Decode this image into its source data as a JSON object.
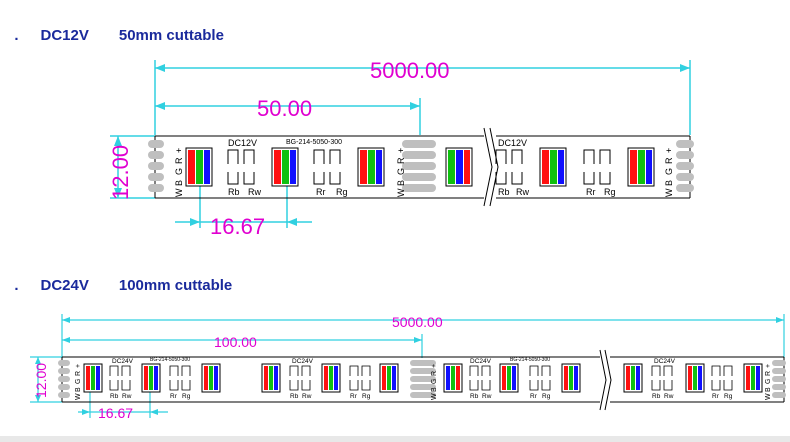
{
  "sections": [
    {
      "bullet": ".",
      "voltage": "DC12V",
      "cut_text": "50mm cuttable",
      "total_length": "5000.00",
      "cut_length": "50.00",
      "width": "12.00",
      "pitch": "16.67",
      "strip_voltage": "DC12V",
      "model": "BG-214-5050-300",
      "pad_labels": [
        "W",
        "B",
        "G",
        "R",
        "+"
      ],
      "resistor_labels": [
        "Rb",
        "Rw",
        "Rr",
        "Rg"
      ]
    },
    {
      "bullet": ".",
      "voltage": "DC24V",
      "cut_text": "100mm cuttable",
      "total_length": "5000.00",
      "cut_length": "100.00",
      "width": "12.00",
      "pitch": "16.67",
      "strip_voltage": "DC24V",
      "model": "BG-214-5050-300",
      "pad_labels": [
        "W",
        "B",
        "G",
        "R",
        "+"
      ],
      "resistor_labels": [
        "Rb",
        "Rw",
        "Rr",
        "Rg"
      ]
    }
  ],
  "colors": {
    "heading": "#1a2a9c",
    "dimension": "#e000d0",
    "dimension_line": "#30d0e0",
    "led_red": "#ff1010",
    "led_green": "#10c010",
    "led_blue": "#1010ff"
  }
}
